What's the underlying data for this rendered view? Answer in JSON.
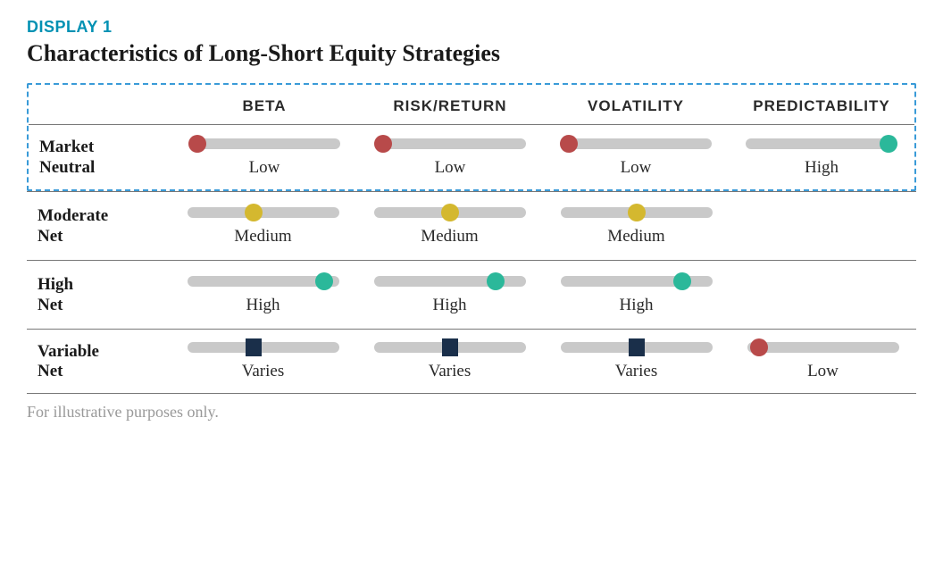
{
  "display_label": "DISPLAY 1",
  "display_label_color": "#0091b3",
  "title": "Characteristics of Long-Short Equity Strategies",
  "columns": [
    "BETA",
    "RISK/RETURN",
    "VOLATILITY",
    "PREDICTABILITY"
  ],
  "colors": {
    "low_red": "#b84a4a",
    "medium_yellow": "#d4b82f",
    "high_teal": "#2bb89a",
    "varies_navy": "#1a2f4a",
    "track": "#c9c9c9",
    "highlight_border": "#3a9bd8"
  },
  "rows": [
    {
      "label_line1": "Market",
      "label_line2": "Neutral",
      "highlighted": true,
      "cells": [
        {
          "value": "Low",
          "position": 6,
          "marker": "dot",
          "color": "#b84a4a"
        },
        {
          "value": "Low",
          "position": 6,
          "marker": "dot",
          "color": "#b84a4a"
        },
        {
          "value": "Low",
          "position": 6,
          "marker": "dot",
          "color": "#b84a4a"
        },
        {
          "value": "High",
          "position": 94,
          "marker": "dot",
          "color": "#2bb89a"
        }
      ]
    },
    {
      "label_line1": "Moderate",
      "label_line2": "Net",
      "highlighted": false,
      "cells": [
        {
          "value": "Medium",
          "position": 44,
          "marker": "dot",
          "color": "#d4b82f"
        },
        {
          "value": "Medium",
          "position": 50,
          "marker": "dot",
          "color": "#d4b82f"
        },
        {
          "value": "Medium",
          "position": 50,
          "marker": "dot",
          "color": "#d4b82f"
        },
        null
      ]
    },
    {
      "label_line1": "High",
      "label_line2": "Net",
      "highlighted": false,
      "cells": [
        {
          "value": "High",
          "position": 90,
          "marker": "dot",
          "color": "#2bb89a"
        },
        {
          "value": "High",
          "position": 80,
          "marker": "dot",
          "color": "#2bb89a"
        },
        {
          "value": "High",
          "position": 80,
          "marker": "dot",
          "color": "#2bb89a"
        },
        null
      ]
    },
    {
      "label_line1": "Variable",
      "label_line2": "Net",
      "highlighted": false,
      "cells": [
        {
          "value": "Varies",
          "position": 44,
          "marker": "square",
          "color": "#1a2f4a"
        },
        {
          "value": "Varies",
          "position": 50,
          "marker": "square",
          "color": "#1a2f4a"
        },
        {
          "value": "Varies",
          "position": 50,
          "marker": "square",
          "color": "#1a2f4a"
        },
        {
          "value": "Low",
          "position": 8,
          "marker": "dot",
          "color": "#b84a4a"
        }
      ]
    }
  ],
  "footnote": "For illustrative purposes only."
}
